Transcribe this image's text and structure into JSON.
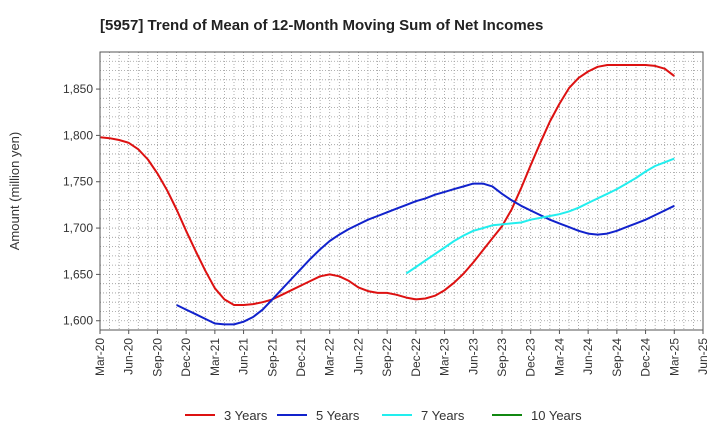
{
  "chart_data": {
    "type": "line",
    "title": "[5957]  Trend of Mean of 12-Month Moving Sum of Net Incomes",
    "xlabel": "",
    "ylabel": "Amount (million yen)",
    "ylim": [
      1590,
      1890
    ],
    "yticks": [
      1600,
      1650,
      1700,
      1750,
      1800,
      1850
    ],
    "ytick_labels": [
      "1,600",
      "1,650",
      "1,700",
      "1,750",
      "1,800",
      "1,850"
    ],
    "xlim": [
      "2020-03",
      "2025-06"
    ],
    "xticks": [
      "Mar-20",
      "Jun-20",
      "Sep-20",
      "Dec-20",
      "Mar-21",
      "Jun-21",
      "Sep-21",
      "Dec-21",
      "Mar-22",
      "Jun-22",
      "Sep-22",
      "Dec-22",
      "Mar-23",
      "Jun-23",
      "Sep-23",
      "Dec-23",
      "Mar-24",
      "Jun-24",
      "Sep-24",
      "Dec-24",
      "Mar-25",
      "Jun-25"
    ],
    "grid": true,
    "legend_position": "bottom",
    "series": [
      {
        "name": "3 Years",
        "color": "#dd1111",
        "points": [
          [
            "2020-03",
            1798
          ],
          [
            "2020-04",
            1797
          ],
          [
            "2020-05",
            1795
          ],
          [
            "2020-06",
            1792
          ],
          [
            "2020-07",
            1785
          ],
          [
            "2020-08",
            1774
          ],
          [
            "2020-09",
            1759
          ],
          [
            "2020-10",
            1741
          ],
          [
            "2020-11",
            1720
          ],
          [
            "2020-12",
            1697
          ],
          [
            "2021-01",
            1675
          ],
          [
            "2021-02",
            1654
          ],
          [
            "2021-03",
            1635
          ],
          [
            "2021-04",
            1623
          ],
          [
            "2021-05",
            1617
          ],
          [
            "2021-06",
            1617
          ],
          [
            "2021-07",
            1618
          ],
          [
            "2021-08",
            1620
          ],
          [
            "2021-09",
            1623
          ],
          [
            "2021-10",
            1628
          ],
          [
            "2021-11",
            1633
          ],
          [
            "2021-12",
            1638
          ],
          [
            "2022-01",
            1643
          ],
          [
            "2022-02",
            1648
          ],
          [
            "2022-03",
            1650
          ],
          [
            "2022-04",
            1648
          ],
          [
            "2022-05",
            1643
          ],
          [
            "2022-06",
            1636
          ],
          [
            "2022-07",
            1632
          ],
          [
            "2022-08",
            1630
          ],
          [
            "2022-09",
            1630
          ],
          [
            "2022-10",
            1628
          ],
          [
            "2022-11",
            1625
          ],
          [
            "2022-12",
            1623
          ],
          [
            "2023-01",
            1624
          ],
          [
            "2023-02",
            1627
          ],
          [
            "2023-03",
            1633
          ],
          [
            "2023-04",
            1641
          ],
          [
            "2023-05",
            1651
          ],
          [
            "2023-06",
            1663
          ],
          [
            "2023-07",
            1676
          ],
          [
            "2023-08",
            1689
          ],
          [
            "2023-09",
            1702
          ],
          [
            "2023-10",
            1720
          ],
          [
            "2023-11",
            1743
          ],
          [
            "2023-12",
            1768
          ],
          [
            "2024-01",
            1792
          ],
          [
            "2024-02",
            1815
          ],
          [
            "2024-03",
            1834
          ],
          [
            "2024-04",
            1851
          ],
          [
            "2024-05",
            1862
          ],
          [
            "2024-06",
            1869
          ],
          [
            "2024-07",
            1874
          ],
          [
            "2024-08",
            1876
          ],
          [
            "2024-09",
            1876
          ],
          [
            "2024-10",
            1876
          ],
          [
            "2024-11",
            1876
          ],
          [
            "2024-12",
            1876
          ],
          [
            "2025-01",
            1875
          ],
          [
            "2025-02",
            1872
          ],
          [
            "2025-03",
            1864
          ]
        ]
      },
      {
        "name": "5 Years",
        "color": "#1122cc",
        "points": [
          [
            "2020-11",
            1617
          ],
          [
            "2020-12",
            1612
          ],
          [
            "2021-01",
            1607
          ],
          [
            "2021-02",
            1602
          ],
          [
            "2021-03",
            1597
          ],
          [
            "2021-04",
            1596
          ],
          [
            "2021-05",
            1596
          ],
          [
            "2021-06",
            1599
          ],
          [
            "2021-07",
            1604
          ],
          [
            "2021-08",
            1612
          ],
          [
            "2021-09",
            1623
          ],
          [
            "2021-10",
            1634
          ],
          [
            "2021-11",
            1645
          ],
          [
            "2021-12",
            1656
          ],
          [
            "2022-01",
            1667
          ],
          [
            "2022-02",
            1677
          ],
          [
            "2022-03",
            1686
          ],
          [
            "2022-04",
            1693
          ],
          [
            "2022-05",
            1699
          ],
          [
            "2022-06",
            1704
          ],
          [
            "2022-07",
            1709
          ],
          [
            "2022-08",
            1713
          ],
          [
            "2022-09",
            1717
          ],
          [
            "2022-10",
            1721
          ],
          [
            "2022-11",
            1725
          ],
          [
            "2022-12",
            1729
          ],
          [
            "2023-01",
            1732
          ],
          [
            "2023-02",
            1736
          ],
          [
            "2023-03",
            1739
          ],
          [
            "2023-04",
            1742
          ],
          [
            "2023-05",
            1745
          ],
          [
            "2023-06",
            1748
          ],
          [
            "2023-07",
            1748
          ],
          [
            "2023-08",
            1745
          ],
          [
            "2023-09",
            1737
          ],
          [
            "2023-10",
            1730
          ],
          [
            "2023-11",
            1724
          ],
          [
            "2023-12",
            1719
          ],
          [
            "2024-01",
            1714
          ],
          [
            "2024-02",
            1709
          ],
          [
            "2024-03",
            1705
          ],
          [
            "2024-04",
            1701
          ],
          [
            "2024-05",
            1697
          ],
          [
            "2024-06",
            1694
          ],
          [
            "2024-07",
            1693
          ],
          [
            "2024-08",
            1694
          ],
          [
            "2024-09",
            1697
          ],
          [
            "2024-10",
            1701
          ],
          [
            "2024-11",
            1705
          ],
          [
            "2024-12",
            1709
          ],
          [
            "2025-01",
            1714
          ],
          [
            "2025-02",
            1719
          ],
          [
            "2025-03",
            1724
          ]
        ]
      },
      {
        "name": "7 Years",
        "color": "#22eeee",
        "points": [
          [
            "2022-11",
            1651
          ],
          [
            "2022-12",
            1658
          ],
          [
            "2023-01",
            1665
          ],
          [
            "2023-02",
            1672
          ],
          [
            "2023-03",
            1679
          ],
          [
            "2023-04",
            1686
          ],
          [
            "2023-05",
            1692
          ],
          [
            "2023-06",
            1697
          ],
          [
            "2023-07",
            1700
          ],
          [
            "2023-08",
            1703
          ],
          [
            "2023-09",
            1704
          ],
          [
            "2023-10",
            1705
          ],
          [
            "2023-11",
            1706
          ],
          [
            "2023-12",
            1709
          ],
          [
            "2024-01",
            1711
          ],
          [
            "2024-02",
            1713
          ],
          [
            "2024-03",
            1715
          ],
          [
            "2024-04",
            1718
          ],
          [
            "2024-05",
            1722
          ],
          [
            "2024-06",
            1727
          ],
          [
            "2024-07",
            1732
          ],
          [
            "2024-08",
            1737
          ],
          [
            "2024-09",
            1742
          ],
          [
            "2024-10",
            1748
          ],
          [
            "2024-11",
            1754
          ],
          [
            "2024-12",
            1761
          ],
          [
            "2025-01",
            1767
          ],
          [
            "2025-02",
            1771
          ],
          [
            "2025-03",
            1775
          ]
        ]
      },
      {
        "name": "10 Years",
        "color": "#118811",
        "points": []
      }
    ]
  }
}
